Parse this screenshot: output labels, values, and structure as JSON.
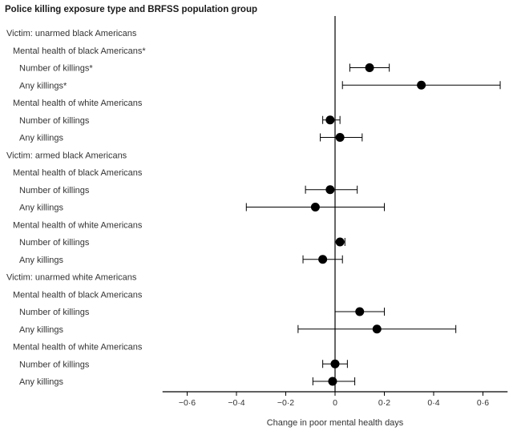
{
  "chart_data": {
    "type": "scatter",
    "title": "Police killing exposure type and BRFSS population group",
    "xlabel": "Change in poor mental health days",
    "xlim": [
      -0.7,
      0.7
    ],
    "xticks": [
      -0.6,
      -0.4,
      -0.2,
      0,
      0.2,
      0.4,
      0.6
    ],
    "tick_labels": [
      "−0·6",
      "−0·4",
      "−0·2",
      "0",
      "0·2",
      "0·4",
      "0·6"
    ],
    "grid": false,
    "rows": [
      {
        "label": "Victim: unarmed black Americans",
        "indent": 0,
        "is_header": true
      },
      {
        "label": "Mental health of black Americans*",
        "indent": 1,
        "is_header": true
      },
      {
        "label": "Number of killings*",
        "indent": 2,
        "is_header": false,
        "estimate": 0.14,
        "lower": 0.06,
        "upper": 0.22
      },
      {
        "label": "Any killings*",
        "indent": 2,
        "is_header": false,
        "estimate": 0.35,
        "lower": 0.03,
        "upper": 0.67
      },
      {
        "label": "Mental health of white Americans",
        "indent": 1,
        "is_header": true
      },
      {
        "label": "Number of killings",
        "indent": 2,
        "is_header": false,
        "estimate": -0.02,
        "lower": -0.05,
        "upper": 0.02
      },
      {
        "label": "Any killings",
        "indent": 2,
        "is_header": false,
        "estimate": 0.02,
        "lower": -0.06,
        "upper": 0.11
      },
      {
        "label": "Victim: armed black Americans",
        "indent": 0,
        "is_header": true
      },
      {
        "label": "Mental health of black Americans",
        "indent": 1,
        "is_header": true
      },
      {
        "label": "Number of killings",
        "indent": 2,
        "is_header": false,
        "estimate": -0.02,
        "lower": -0.12,
        "upper": 0.09
      },
      {
        "label": "Any killings",
        "indent": 2,
        "is_header": false,
        "estimate": -0.08,
        "lower": -0.36,
        "upper": 0.2
      },
      {
        "label": "Mental health of white Americans",
        "indent": 1,
        "is_header": true
      },
      {
        "label": "Number of killings",
        "indent": 2,
        "is_header": false,
        "estimate": 0.02,
        "lower": 0.0,
        "upper": 0.04
      },
      {
        "label": "Any killings",
        "indent": 2,
        "is_header": false,
        "estimate": -0.05,
        "lower": -0.13,
        "upper": 0.03
      },
      {
        "label": "Victim: unarmed white Americans",
        "indent": 0,
        "is_header": true
      },
      {
        "label": "Mental health of black Americans",
        "indent": 1,
        "is_header": true
      },
      {
        "label": "Number of killings",
        "indent": 2,
        "is_header": false,
        "estimate": 0.1,
        "lower": 0.0,
        "upper": 0.2
      },
      {
        "label": "Any killings",
        "indent": 2,
        "is_header": false,
        "estimate": 0.17,
        "lower": -0.15,
        "upper": 0.49
      },
      {
        "label": "Mental health of white Americans",
        "indent": 1,
        "is_header": true
      },
      {
        "label": "Number of killings",
        "indent": 2,
        "is_header": false,
        "estimate": 0.0,
        "lower": -0.05,
        "upper": 0.05
      },
      {
        "label": "Any killings",
        "indent": 2,
        "is_header": false,
        "estimate": -0.01,
        "lower": -0.09,
        "upper": 0.08
      }
    ],
    "colors": {
      "marker": "#000000",
      "axis": "#000000",
      "text": "#333333"
    }
  }
}
